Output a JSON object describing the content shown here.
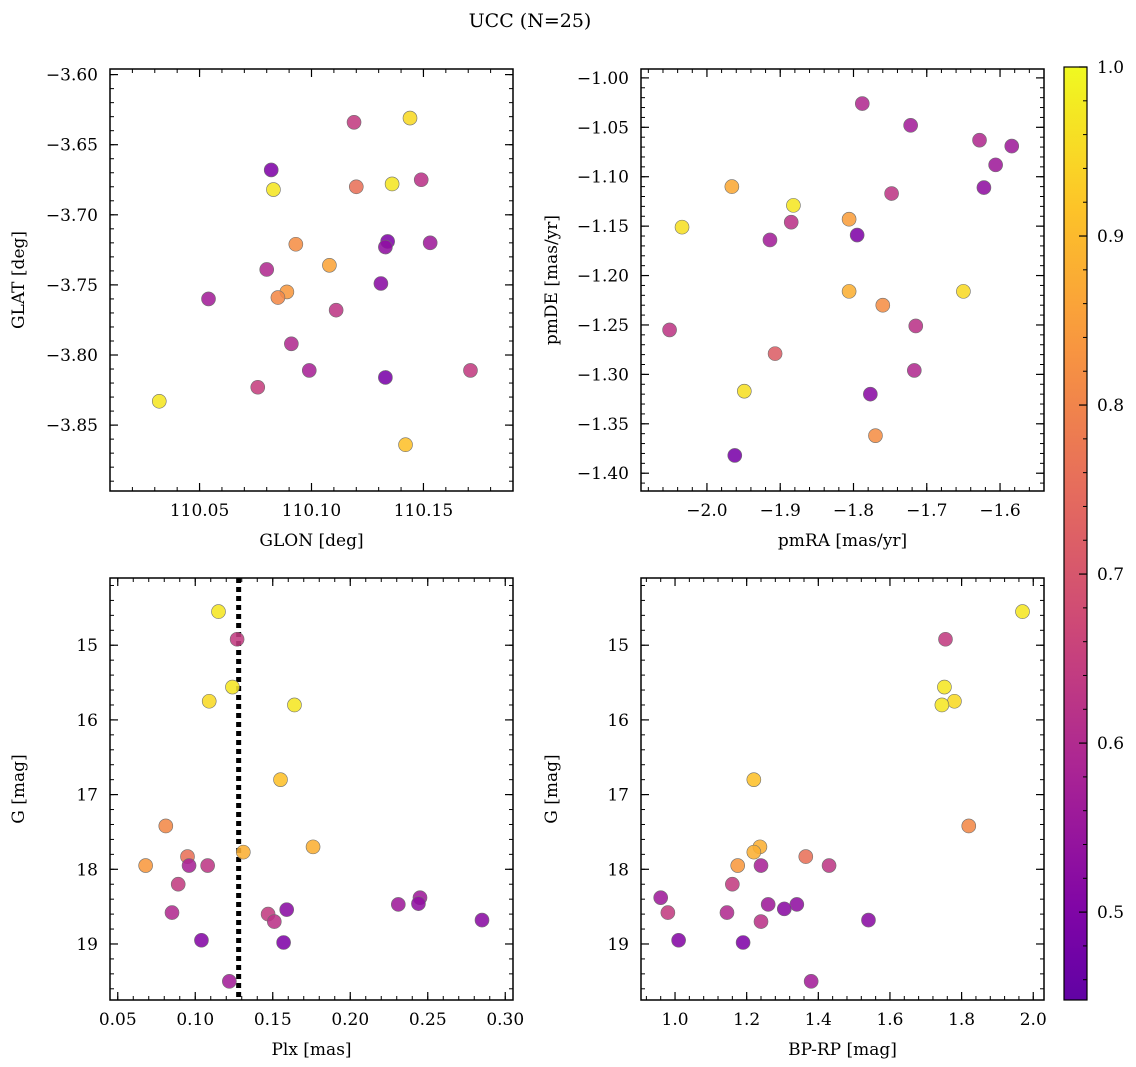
{
  "figure": {
    "title": "UCC (N=25)"
  },
  "colorbar": {
    "cmap": "plasma",
    "vmin": 0.448,
    "vmax": 1.0,
    "ticks": [
      0.5,
      0.6,
      0.7,
      0.8,
      0.9,
      1.0
    ],
    "tick_labels": [
      "0.5",
      "0.6",
      "0.7",
      "0.8",
      "0.9",
      "1.0"
    ]
  },
  "chart_data": [
    {
      "type": "scatter",
      "title": "",
      "xlabel": "GLON [deg]",
      "ylabel": "GLAT [deg]",
      "xlim": [
        110.01,
        110.19
      ],
      "ylim": [
        -3.897,
        -3.596
      ],
      "y_inverted": false,
      "xticks": [
        110.05,
        110.1,
        110.15
      ],
      "xtick_labels": [
        "110.05",
        "110.10",
        "110.15"
      ],
      "yticks": [
        -3.85,
        -3.8,
        -3.75,
        -3.7,
        -3.65,
        -3.6
      ],
      "ytick_labels": [
        "−3.85",
        "−3.80",
        "−3.75",
        "−3.70",
        "−3.65",
        "−3.60"
      ],
      "points": [
        {
          "x": 110.119,
          "y": -3.634,
          "c": 0.64
        },
        {
          "x": 110.144,
          "y": -3.631,
          "c": 0.95
        },
        {
          "x": 110.082,
          "y": -3.668,
          "c": 0.5
        },
        {
          "x": 110.083,
          "y": -3.682,
          "c": 0.97
        },
        {
          "x": 110.12,
          "y": -3.68,
          "c": 0.76
        },
        {
          "x": 110.136,
          "y": -3.678,
          "c": 0.97
        },
        {
          "x": 110.149,
          "y": -3.675,
          "c": 0.62
        },
        {
          "x": 110.093,
          "y": -3.721,
          "c": 0.82
        },
        {
          "x": 110.134,
          "y": -3.719,
          "c": 0.5
        },
        {
          "x": 110.133,
          "y": -3.723,
          "c": 0.53
        },
        {
          "x": 110.153,
          "y": -3.72,
          "c": 0.56
        },
        {
          "x": 110.108,
          "y": -3.736,
          "c": 0.86
        },
        {
          "x": 110.08,
          "y": -3.739,
          "c": 0.6
        },
        {
          "x": 110.131,
          "y": -3.749,
          "c": 0.52
        },
        {
          "x": 110.089,
          "y": -3.755,
          "c": 0.84
        },
        {
          "x": 110.085,
          "y": -3.759,
          "c": 0.81
        },
        {
          "x": 110.054,
          "y": -3.76,
          "c": 0.57
        },
        {
          "x": 110.111,
          "y": -3.768,
          "c": 0.63
        },
        {
          "x": 110.091,
          "y": -3.792,
          "c": 0.6
        },
        {
          "x": 110.099,
          "y": -3.811,
          "c": 0.58
        },
        {
          "x": 110.171,
          "y": -3.811,
          "c": 0.64
        },
        {
          "x": 110.133,
          "y": -3.816,
          "c": 0.49
        },
        {
          "x": 110.076,
          "y": -3.823,
          "c": 0.65
        },
        {
          "x": 110.032,
          "y": -3.833,
          "c": 0.97
        },
        {
          "x": 110.142,
          "y": -3.864,
          "c": 0.91
        }
      ]
    },
    {
      "type": "scatter",
      "title": "",
      "xlabel": "pmRA [mas/yr]",
      "ylabel": "pmDE [mas/yr]",
      "xlim": [
        -2.09,
        -1.54
      ],
      "ylim": [
        -1.418,
        -0.991
      ],
      "y_inverted": false,
      "xticks": [
        -2.0,
        -1.9,
        -1.8,
        -1.7,
        -1.6
      ],
      "xtick_labels": [
        "−2.0",
        "−1.9",
        "−1.8",
        "−1.7",
        "−1.6"
      ],
      "yticks": [
        -1.4,
        -1.35,
        -1.3,
        -1.25,
        -1.2,
        -1.15,
        -1.1,
        -1.05,
        -1.0
      ],
      "ytick_labels": [
        "−1.40",
        "−1.35",
        "−1.30",
        "−1.25",
        "−1.20",
        "−1.15",
        "−1.10",
        "−1.05",
        "−1.00"
      ],
      "points": [
        {
          "x": -1.788,
          "y": -1.026,
          "c": 0.6
        },
        {
          "x": -1.722,
          "y": -1.048,
          "c": 0.57
        },
        {
          "x": -1.628,
          "y": -1.063,
          "c": 0.6
        },
        {
          "x": -1.584,
          "y": -1.069,
          "c": 0.56
        },
        {
          "x": -1.606,
          "y": -1.088,
          "c": 0.56
        },
        {
          "x": -1.622,
          "y": -1.111,
          "c": 0.53
        },
        {
          "x": -1.966,
          "y": -1.11,
          "c": 0.87
        },
        {
          "x": -1.748,
          "y": -1.117,
          "c": 0.63
        },
        {
          "x": -1.882,
          "y": -1.129,
          "c": 0.97
        },
        {
          "x": -1.806,
          "y": -1.143,
          "c": 0.85
        },
        {
          "x": -1.885,
          "y": -1.146,
          "c": 0.62
        },
        {
          "x": -2.034,
          "y": -1.151,
          "c": 0.96
        },
        {
          "x": -1.795,
          "y": -1.159,
          "c": 0.5
        },
        {
          "x": -1.914,
          "y": -1.164,
          "c": 0.57
        },
        {
          "x": -1.806,
          "y": -1.216,
          "c": 0.88
        },
        {
          "x": -1.65,
          "y": -1.216,
          "c": 0.95
        },
        {
          "x": -1.76,
          "y": -1.23,
          "c": 0.82
        },
        {
          "x": -1.715,
          "y": -1.251,
          "c": 0.62
        },
        {
          "x": -2.051,
          "y": -1.255,
          "c": 0.63
        },
        {
          "x": -1.907,
          "y": -1.279,
          "c": 0.72
        },
        {
          "x": -1.717,
          "y": -1.296,
          "c": 0.6
        },
        {
          "x": -1.949,
          "y": -1.317,
          "c": 0.96
        },
        {
          "x": -1.777,
          "y": -1.32,
          "c": 0.52
        },
        {
          "x": -1.77,
          "y": -1.362,
          "c": 0.82
        },
        {
          "x": -1.962,
          "y": -1.382,
          "c": 0.49
        }
      ]
    },
    {
      "type": "scatter",
      "title": "",
      "xlabel": "Plx [mas]",
      "ylabel": "G [mag]",
      "xlim": [
        0.045,
        0.305
      ],
      "ylim": [
        19.75,
        14.1
      ],
      "y_inverted": true,
      "xticks": [
        0.05,
        0.1,
        0.15,
        0.2,
        0.25,
        0.3
      ],
      "xtick_labels": [
        "0.05",
        "0.10",
        "0.15",
        "0.20",
        "0.25",
        "0.30"
      ],
      "yticks": [
        15,
        16,
        17,
        18,
        19
      ],
      "ytick_labels": [
        "15",
        "16",
        "17",
        "18",
        "19"
      ],
      "vline": {
        "x": 0.128,
        "style": "dotted"
      },
      "points": [
        {
          "x": 0.115,
          "y": 14.55,
          "c": 0.97
        },
        {
          "x": 0.127,
          "y": 14.92,
          "c": 0.64
        },
        {
          "x": 0.124,
          "y": 15.56,
          "c": 0.97
        },
        {
          "x": 0.109,
          "y": 15.75,
          "c": 0.95
        },
        {
          "x": 0.164,
          "y": 15.8,
          "c": 0.97
        },
        {
          "x": 0.155,
          "y": 16.8,
          "c": 0.91
        },
        {
          "x": 0.081,
          "y": 17.42,
          "c": 0.81
        },
        {
          "x": 0.176,
          "y": 17.7,
          "c": 0.88
        },
        {
          "x": 0.131,
          "y": 17.77,
          "c": 0.88
        },
        {
          "x": 0.095,
          "y": 17.83,
          "c": 0.76
        },
        {
          "x": 0.068,
          "y": 17.95,
          "c": 0.84
        },
        {
          "x": 0.096,
          "y": 17.95,
          "c": 0.58
        },
        {
          "x": 0.108,
          "y": 17.95,
          "c": 0.63
        },
        {
          "x": 0.089,
          "y": 18.2,
          "c": 0.64
        },
        {
          "x": 0.245,
          "y": 18.38,
          "c": 0.56
        },
        {
          "x": 0.231,
          "y": 18.47,
          "c": 0.56
        },
        {
          "x": 0.244,
          "y": 18.46,
          "c": 0.53
        },
        {
          "x": 0.159,
          "y": 18.54,
          "c": 0.52
        },
        {
          "x": 0.085,
          "y": 18.58,
          "c": 0.6
        },
        {
          "x": 0.147,
          "y": 18.6,
          "c": 0.64
        },
        {
          "x": 0.151,
          "y": 18.7,
          "c": 0.62
        },
        {
          "x": 0.285,
          "y": 18.68,
          "c": 0.52
        },
        {
          "x": 0.104,
          "y": 18.95,
          "c": 0.51
        },
        {
          "x": 0.157,
          "y": 18.98,
          "c": 0.5
        },
        {
          "x": 0.122,
          "y": 19.5,
          "c": 0.57
        }
      ]
    },
    {
      "type": "scatter",
      "title": "",
      "xlabel": "BP-RP [mag]",
      "ylabel": "G [mag]",
      "xlim": [
        0.905,
        2.03
      ],
      "ylim": [
        19.75,
        14.1
      ],
      "y_inverted": true,
      "xticks": [
        1.0,
        1.2,
        1.4,
        1.6,
        1.8,
        2.0
      ],
      "xtick_labels": [
        "1.0",
        "1.2",
        "1.4",
        "1.6",
        "1.8",
        "2.0"
      ],
      "yticks": [
        15,
        16,
        17,
        18,
        19
      ],
      "ytick_labels": [
        "15",
        "16",
        "17",
        "18",
        "19"
      ],
      "points": [
        {
          "x": 1.97,
          "y": 14.55,
          "c": 0.97
        },
        {
          "x": 1.755,
          "y": 14.92,
          "c": 0.64
        },
        {
          "x": 1.752,
          "y": 15.56,
          "c": 0.97
        },
        {
          "x": 1.78,
          "y": 15.75,
          "c": 0.95
        },
        {
          "x": 1.745,
          "y": 15.8,
          "c": 0.97
        },
        {
          "x": 1.22,
          "y": 16.8,
          "c": 0.91
        },
        {
          "x": 1.82,
          "y": 17.42,
          "c": 0.81
        },
        {
          "x": 1.237,
          "y": 17.7,
          "c": 0.88
        },
        {
          "x": 1.22,
          "y": 17.77,
          "c": 0.88
        },
        {
          "x": 1.365,
          "y": 17.83,
          "c": 0.76
        },
        {
          "x": 1.175,
          "y": 17.95,
          "c": 0.84
        },
        {
          "x": 1.24,
          "y": 17.95,
          "c": 0.58
        },
        {
          "x": 1.43,
          "y": 17.95,
          "c": 0.63
        },
        {
          "x": 1.16,
          "y": 18.2,
          "c": 0.64
        },
        {
          "x": 0.96,
          "y": 18.38,
          "c": 0.56
        },
        {
          "x": 1.26,
          "y": 18.47,
          "c": 0.56
        },
        {
          "x": 1.34,
          "y": 18.47,
          "c": 0.53
        },
        {
          "x": 1.305,
          "y": 18.53,
          "c": 0.52
        },
        {
          "x": 1.145,
          "y": 18.58,
          "c": 0.6
        },
        {
          "x": 0.98,
          "y": 18.58,
          "c": 0.64
        },
        {
          "x": 1.24,
          "y": 18.7,
          "c": 0.62
        },
        {
          "x": 1.54,
          "y": 18.68,
          "c": 0.52
        },
        {
          "x": 1.01,
          "y": 18.95,
          "c": 0.51
        },
        {
          "x": 1.19,
          "y": 18.98,
          "c": 0.5
        },
        {
          "x": 1.38,
          "y": 19.5,
          "c": 0.57
        }
      ]
    }
  ]
}
